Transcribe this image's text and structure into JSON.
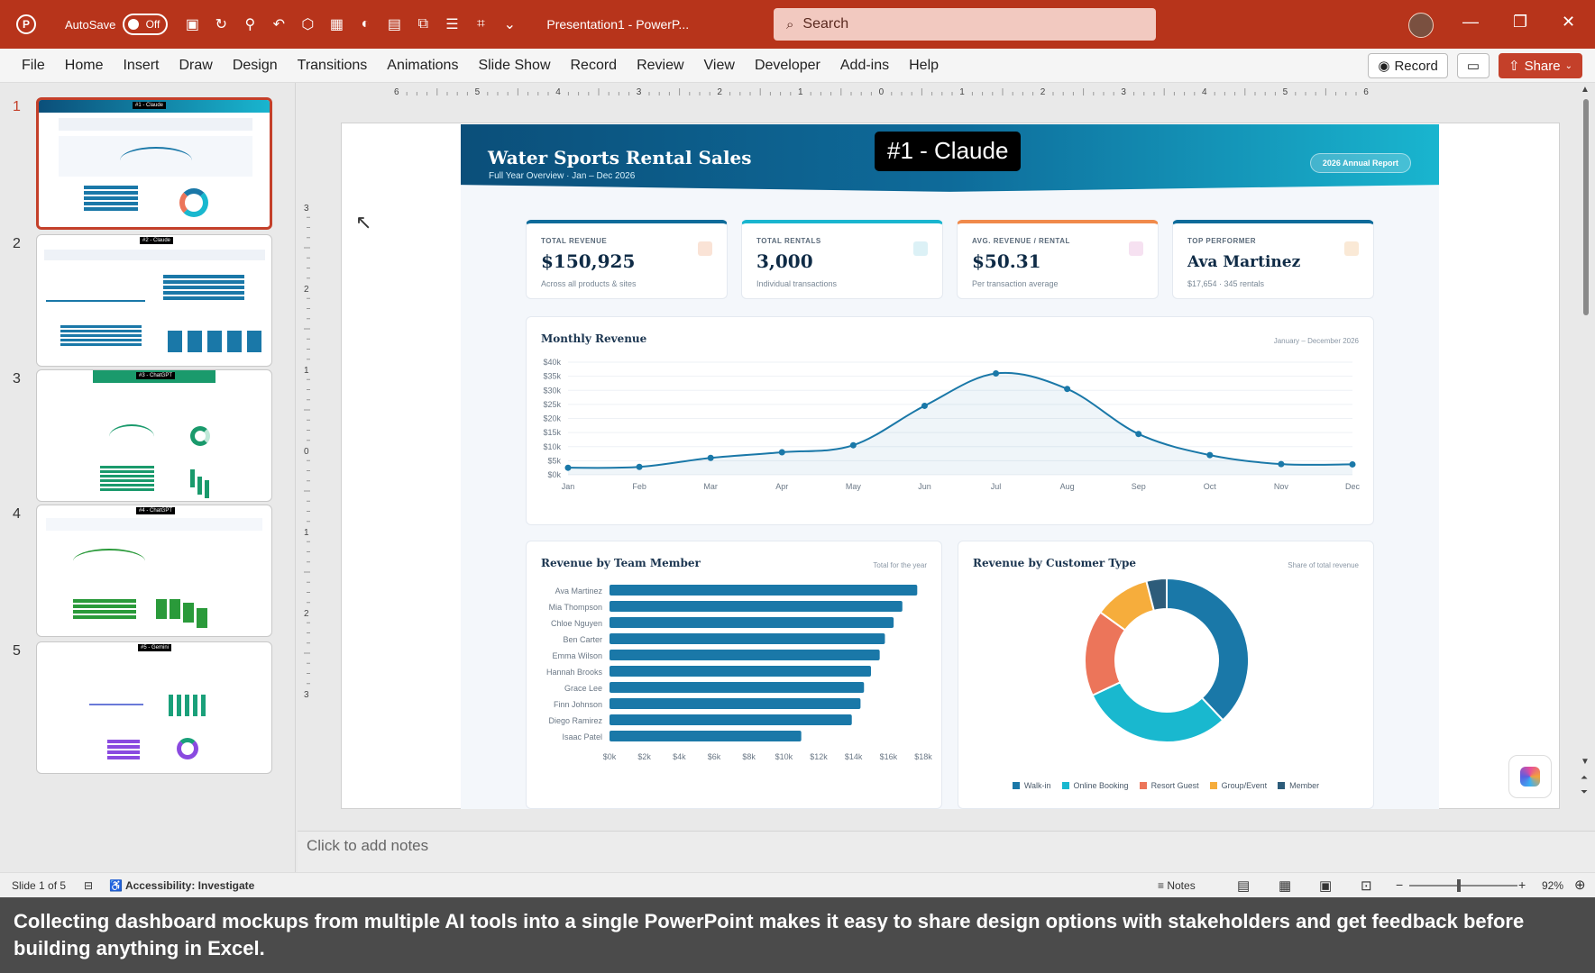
{
  "titlebar": {
    "autosave_label": "AutoSave",
    "autosave_state": "Off",
    "doc_title": "Presentation1 - PowerP...",
    "search_placeholder": "Search"
  },
  "ribbon": {
    "tabs": [
      "File",
      "Home",
      "Insert",
      "Draw",
      "Design",
      "Transitions",
      "Animations",
      "Slide Show",
      "Record",
      "Review",
      "View",
      "Developer",
      "Add-ins",
      "Help"
    ],
    "record_label": "Record",
    "share_label": "Share"
  },
  "thumbnails": [
    {
      "num": "1",
      "tag": "#1 - Claude"
    },
    {
      "num": "2",
      "tag": "#2 - Claude"
    },
    {
      "num": "3",
      "tag": "#3 - ChatGPT"
    },
    {
      "num": "4",
      "tag": "#4 - ChatGPT"
    },
    {
      "num": "5",
      "tag": "#5 - Gemini"
    }
  ],
  "ruler": {
    "h_labels": [
      "6",
      "5",
      "4",
      "3",
      "2",
      "1",
      "0",
      "1",
      "2",
      "3",
      "4",
      "5",
      "6"
    ],
    "v_labels": [
      "3",
      "2",
      "1",
      "0",
      "1",
      "2",
      "3"
    ]
  },
  "slide": {
    "tag": "#1 - Claude",
    "title": "Water Sports Rental Sales",
    "subtitle": "Full Year Overview  ·  Jan – Dec 2026",
    "badge": "2026 Annual Report",
    "kpis": [
      {
        "label": "TOTAL REVENUE",
        "value": "$150,925",
        "sub": "Across all products & sites",
        "accent": "#0e6b9a"
      },
      {
        "label": "TOTAL RENTALS",
        "value": "3,000",
        "sub": "Individual transactions",
        "accent": "#19b5cf"
      },
      {
        "label": "AVG. REVENUE / RENTAL",
        "value": "$50.31",
        "sub": "Per transaction average",
        "accent": "#f08a4b"
      },
      {
        "label": "TOP PERFORMER",
        "value": "Ava Martinez",
        "sub": "$17,654  ·  345 rentals",
        "accent": "#0e6b9a"
      }
    ],
    "monthly_title": "Monthly Revenue",
    "monthly_note": "January – December 2026",
    "team_title": "Revenue by Team Member",
    "team_note": "Total for the year",
    "customer_title": "Revenue by Customer Type",
    "customer_note": "Share of total revenue"
  },
  "chart_data": [
    {
      "type": "line",
      "title": "Monthly Revenue",
      "x": [
        "Jan",
        "Feb",
        "Mar",
        "Apr",
        "May",
        "Jun",
        "Jul",
        "Aug",
        "Sep",
        "Oct",
        "Nov",
        "Dec"
      ],
      "y_ticks": [
        "$0k",
        "$5k",
        "$10k",
        "$15k",
        "$20k",
        "$25k",
        "$30k",
        "$35k",
        "$40k"
      ],
      "values": [
        2500,
        2800,
        6000,
        8000,
        10500,
        24500,
        36000,
        30500,
        14500,
        7000,
        3800,
        3700
      ],
      "ylim": [
        0,
        40000
      ],
      "color": "#1a78a8"
    },
    {
      "type": "bar",
      "orientation": "horizontal",
      "title": "Revenue by Team Member",
      "categories": [
        "Ava Martinez",
        "Mia Thompson",
        "Chloe Nguyen",
        "Ben Carter",
        "Emma Wilson",
        "Hannah Brooks",
        "Grace Lee",
        "Finn Johnson",
        "Diego Ramirez",
        "Isaac Patel"
      ],
      "values": [
        17654,
        16800,
        16300,
        15800,
        15500,
        15000,
        14600,
        14400,
        13900,
        11000
      ],
      "x_ticks": [
        "$0k",
        "$2k",
        "$4k",
        "$6k",
        "$8k",
        "$10k",
        "$12k",
        "$14k",
        "$16k",
        "$18k"
      ],
      "xlim": [
        0,
        18000
      ],
      "color": "#1a78a8"
    },
    {
      "type": "pie",
      "title": "Revenue by Customer Type",
      "labels": [
        "Walk-in",
        "Online Booking",
        "Resort Guest",
        "Group/Event",
        "Member"
      ],
      "values": [
        38,
        30,
        17,
        11,
        4
      ],
      "colors": [
        "#1a78a8",
        "#19b8cf",
        "#ec755a",
        "#f6ad3c",
        "#2d5c7a"
      ]
    }
  ],
  "notes_placeholder": "Click to add notes",
  "status": {
    "slide_info": "Slide 1 of 5",
    "accessibility": "Accessibility: Investigate",
    "notes_label": "Notes",
    "zoom": "92%"
  },
  "caption": "Collecting dashboard mockups from multiple AI tools into a single PowerPoint makes it easy to share design options with stakeholders and get feedback before building anything in Excel."
}
